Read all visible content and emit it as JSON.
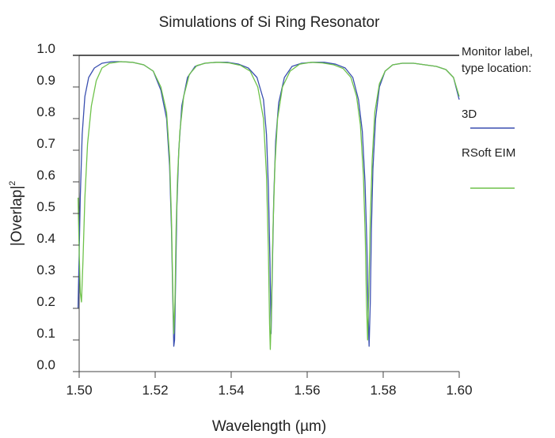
{
  "chart_data": {
    "type": "line",
    "title": "Simulations of Si Ring Resonator",
    "xlabel": "Wavelength (µm)",
    "ylabel": "|Overlap|",
    "ylabel_sup": "2",
    "xlim": [
      1.5,
      1.6
    ],
    "ylim": [
      0.0,
      1.0
    ],
    "xticks": [
      "1.50",
      "1.52",
      "1.54",
      "1.56",
      "1.58",
      "1.60"
    ],
    "yticks": [
      "0.0",
      "0.1",
      "0.2",
      "0.3",
      "0.4",
      "0.5",
      "0.6",
      "0.7",
      "0.8",
      "0.9",
      "1.0"
    ],
    "grid": false,
    "legend_header": [
      "Monitor label,",
      "type location:"
    ],
    "legend_placement": "right",
    "series": [
      {
        "name": "3D",
        "color": "#3a4fb0",
        "x": [
          1.4997,
          1.5003,
          1.5008,
          1.5015,
          1.5025,
          1.504,
          1.506,
          1.5085,
          1.511,
          1.514,
          1.517,
          1.5195,
          1.5215,
          1.523,
          1.5238,
          1.5243,
          1.5246,
          1.5249,
          1.5251,
          1.5254,
          1.5257,
          1.5262,
          1.527,
          1.5285,
          1.5305,
          1.533,
          1.536,
          1.539,
          1.542,
          1.5445,
          1.5468,
          1.5485,
          1.5493,
          1.5498,
          1.5502,
          1.5505,
          1.5508,
          1.5512,
          1.5517,
          1.5525,
          1.554,
          1.556,
          1.5585,
          1.5615,
          1.5645,
          1.5675,
          1.57,
          1.572,
          1.5735,
          1.5745,
          1.5752,
          1.5757,
          1.576,
          1.5763,
          1.5766,
          1.5769,
          1.5773,
          1.578,
          1.579,
          1.5805,
          1.5825,
          1.585,
          1.588,
          1.591,
          1.594,
          1.5965,
          1.5985,
          1.6
        ],
        "y": [
          0.2,
          0.55,
          0.75,
          0.87,
          0.93,
          0.96,
          0.975,
          0.98,
          0.98,
          0.978,
          0.97,
          0.95,
          0.89,
          0.8,
          0.65,
          0.45,
          0.25,
          0.08,
          0.1,
          0.3,
          0.52,
          0.7,
          0.84,
          0.93,
          0.965,
          0.975,
          0.978,
          0.978,
          0.972,
          0.96,
          0.93,
          0.86,
          0.75,
          0.58,
          0.35,
          0.12,
          0.3,
          0.55,
          0.73,
          0.85,
          0.93,
          0.965,
          0.975,
          0.978,
          0.978,
          0.972,
          0.96,
          0.93,
          0.86,
          0.76,
          0.6,
          0.4,
          0.2,
          0.08,
          0.22,
          0.45,
          0.64,
          0.8,
          0.9,
          0.95,
          0.97,
          0.975,
          0.975,
          0.97,
          0.965,
          0.955,
          0.93,
          0.86
        ]
      },
      {
        "name": "RSoft EIM",
        "color": "#6ec24a",
        "x": [
          1.4997,
          1.5,
          1.5003,
          1.5006,
          1.501,
          1.5015,
          1.5022,
          1.5032,
          1.5045,
          1.506,
          1.508,
          1.511,
          1.514,
          1.517,
          1.5195,
          1.5215,
          1.523,
          1.5238,
          1.5243,
          1.5246,
          1.5249,
          1.5252,
          1.5255,
          1.5259,
          1.5265,
          1.5275,
          1.529,
          1.531,
          1.5335,
          1.5365,
          1.5395,
          1.5425,
          1.545,
          1.547,
          1.5485,
          1.5493,
          1.5498,
          1.5501,
          1.5503,
          1.5506,
          1.551,
          1.5515,
          1.5522,
          1.5535,
          1.5555,
          1.558,
          1.561,
          1.564,
          1.567,
          1.5695,
          1.5715,
          1.573,
          1.574,
          1.5748,
          1.5753,
          1.5756,
          1.5759,
          1.5762,
          1.5766,
          1.5771,
          1.5778,
          1.579,
          1.5805,
          1.5825,
          1.585,
          1.588,
          1.591,
          1.594,
          1.5965,
          1.5985,
          1.6
        ],
        "y": [
          0.55,
          0.38,
          0.25,
          0.22,
          0.35,
          0.55,
          0.72,
          0.84,
          0.92,
          0.96,
          0.975,
          0.98,
          0.978,
          0.97,
          0.95,
          0.9,
          0.82,
          0.68,
          0.48,
          0.28,
          0.12,
          0.22,
          0.45,
          0.62,
          0.76,
          0.87,
          0.94,
          0.968,
          0.976,
          0.978,
          0.976,
          0.968,
          0.95,
          0.9,
          0.8,
          0.62,
          0.38,
          0.15,
          0.07,
          0.2,
          0.45,
          0.65,
          0.8,
          0.9,
          0.95,
          0.972,
          0.978,
          0.976,
          0.97,
          0.958,
          0.93,
          0.87,
          0.78,
          0.62,
          0.42,
          0.22,
          0.1,
          0.25,
          0.48,
          0.67,
          0.82,
          0.91,
          0.95,
          0.97,
          0.975,
          0.975,
          0.97,
          0.965,
          0.955,
          0.93,
          0.87
        ]
      }
    ]
  }
}
